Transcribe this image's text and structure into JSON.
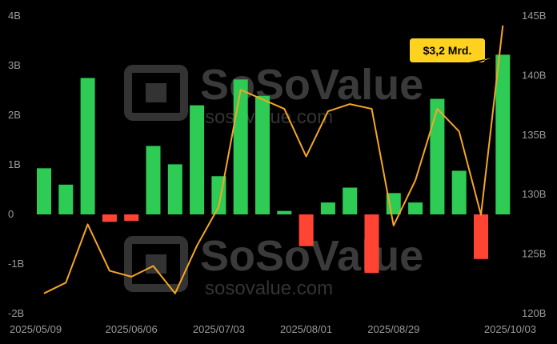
{
  "chart_data": {
    "type": "bar",
    "colors": {
      "positive": "#2ecc55",
      "negative": "#ff4433",
      "line": "#f5a623",
      "callout": "#ffd21f"
    },
    "bar_axis": {
      "ylim": [
        -2,
        4
      ],
      "ticks": [
        "-2B",
        "-1B",
        "0",
        "1B",
        "2B",
        "3B",
        "4B"
      ]
    },
    "line_axis": {
      "ylim": [
        120,
        145
      ],
      "ticks": [
        "120B",
        "125B",
        "130B",
        "135B",
        "140B",
        "145B"
      ]
    },
    "x_ticks": [
      "2025/05/09",
      "2025/06/06",
      "2025/07/03",
      "2025/08/01",
      "2025/08/29",
      "2025/10/03"
    ],
    "series": [
      {
        "values": [
          0.93,
          0.6,
          2.75,
          -0.15,
          -0.13,
          1.38,
          1.01,
          2.2,
          0.77,
          2.72,
          2.39,
          0.07,
          -0.64,
          0.24,
          0.54,
          -1.18,
          0.43,
          0.24,
          2.33,
          0.88,
          -0.9,
          3.22
        ]
      },
      {
        "values": [
          121.7,
          122.6,
          127.5,
          123.6,
          123.1,
          124.0,
          121.7,
          125.7,
          129.0,
          138.8,
          138.0,
          137.2,
          133.2,
          137.0,
          137.6,
          137.2,
          127.4,
          131.2,
          137.2,
          135.3,
          128.3,
          144.2
        ]
      }
    ],
    "annotation": {
      "text": "$3,2 Mrd."
    }
  },
  "watermark": {
    "brand": "SoSoValue",
    "url": "sosovalue.com"
  }
}
